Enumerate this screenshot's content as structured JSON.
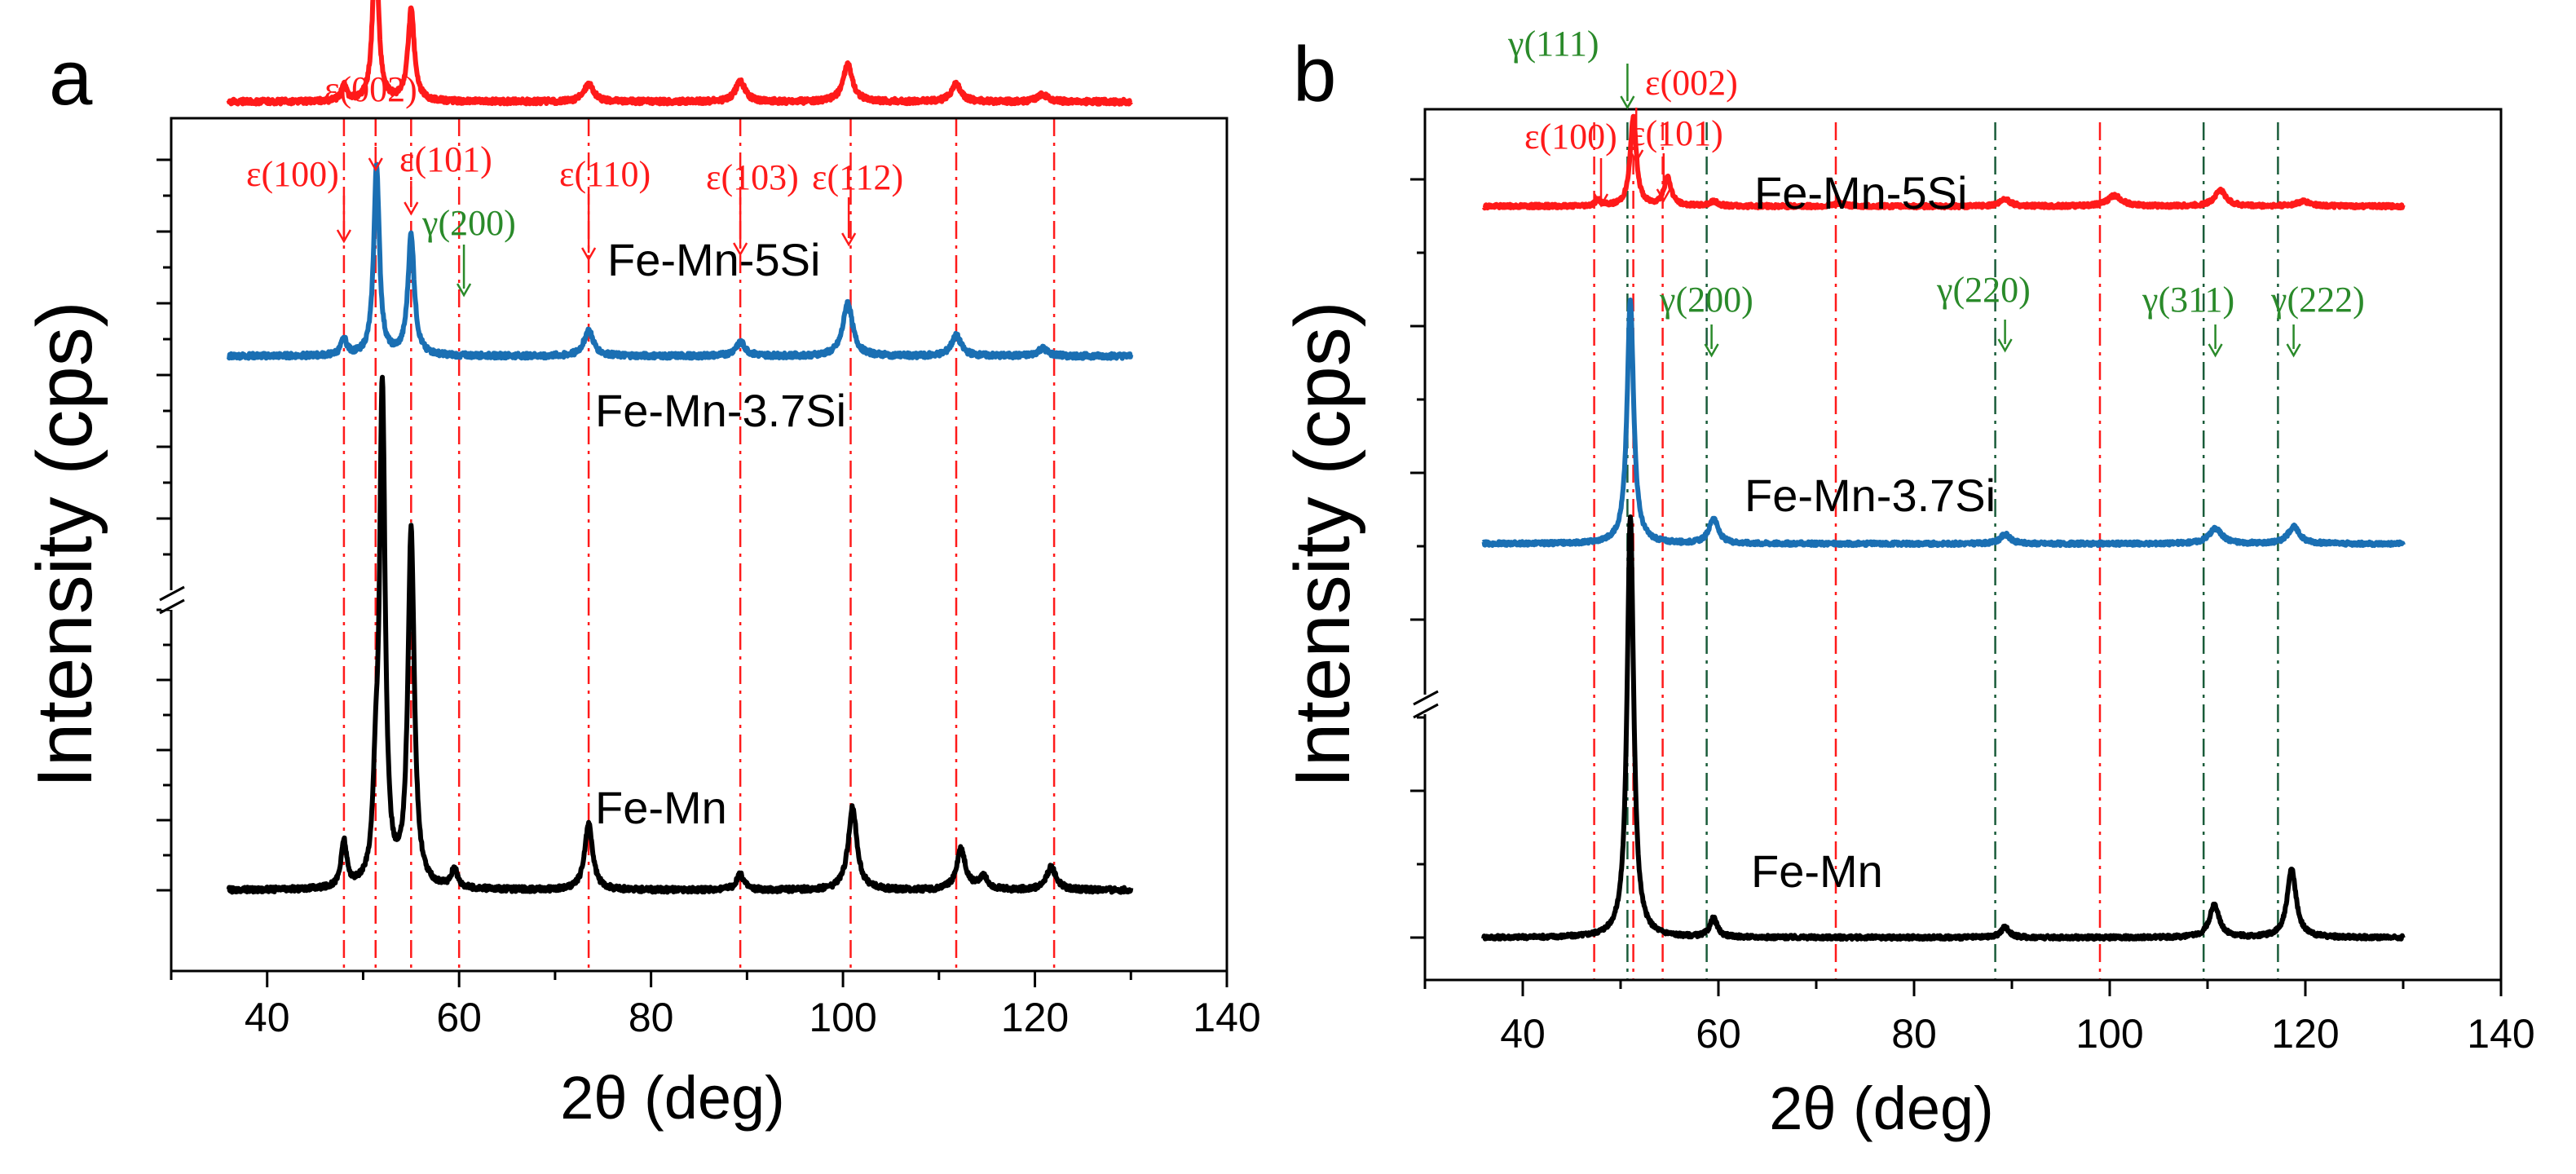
{
  "colors": {
    "red": "#ff1a1a",
    "blue": "#1a6fb3",
    "black": "#000000",
    "green": "#2a8a2a"
  },
  "chart_data": [
    {
      "panel": "a",
      "type": "line",
      "xlabel": "2θ (deg)",
      "ylabel": "Intensity (cps)",
      "xlim": [
        30,
        140
      ],
      "xticks": [
        40,
        60,
        80,
        100,
        120,
        140
      ],
      "axis_break": true,
      "reference_lines": {
        "epsilon": [
          48,
          51.3,
          55,
          60,
          73.5,
          89.3,
          100.8,
          111.8,
          122
        ],
        "gamma": []
      },
      "series": [
        {
          "name": "Fe-Mn-5Si",
          "color": "red",
          "baseline": 0.62,
          "peaks": [
            [
              48,
              0.012,
              0.35
            ],
            [
              51.3,
              0.13,
              0.35
            ],
            [
              55,
              0.072,
              0.4
            ],
            [
              73.5,
              0.014,
              0.6
            ],
            [
              89.3,
              0.016,
              0.6
            ],
            [
              100.5,
              0.029,
              0.6
            ],
            [
              111.8,
              0.014,
              0.6
            ],
            [
              120.8,
              0.006,
              0.6
            ]
          ]
        },
        {
          "name": "Fe-Mn-3.7Si",
          "color": "blue",
          "baseline": 0.42,
          "peaks": [
            [
              48,
              0.013,
              0.35
            ],
            [
              51.4,
              0.15,
              0.35
            ],
            [
              55,
              0.095,
              0.4
            ],
            [
              73.5,
              0.02,
              0.6
            ],
            [
              89.3,
              0.011,
              0.6
            ],
            [
              100.5,
              0.042,
              0.6
            ],
            [
              111.8,
              0.016,
              0.6
            ],
            [
              120.8,
              0.006,
              0.6
            ]
          ]
        },
        {
          "name": "Fe-Mn",
          "color": "black",
          "baseline": 0.0,
          "peaks": [
            [
              48,
              0.036,
              0.35
            ],
            [
              51.3,
              0.06,
              0.3
            ],
            [
              52,
              0.39,
              0.35
            ],
            [
              55,
              0.28,
              0.4
            ],
            [
              59.5,
              0.015,
              0.4
            ],
            [
              73.5,
              0.052,
              0.5
            ],
            [
              89.3,
              0.012,
              0.5
            ],
            [
              101,
              0.065,
              0.55
            ],
            [
              112.3,
              0.032,
              0.55
            ],
            [
              114.6,
              0.01,
              0.6
            ],
            [
              121.7,
              0.018,
              0.6
            ]
          ]
        }
      ],
      "series_labels": [
        "Fe-Mn-5Si",
        "Fe-Mn-3.7Si",
        "Fe-Mn"
      ],
      "peak_labels": [
        {
          "text": "ε(002)",
          "x": 51.3,
          "phase": "epsilon"
        },
        {
          "text": "ε(100)",
          "x": 48,
          "phase": "epsilon"
        },
        {
          "text": "ε(101)",
          "x": 55,
          "phase": "epsilon"
        },
        {
          "text": "γ(200)",
          "x": 60.5,
          "phase": "gamma"
        },
        {
          "text": "ε(110)",
          "x": 73.5,
          "phase": "epsilon"
        },
        {
          "text": "ε(103)",
          "x": 89.3,
          "phase": "epsilon"
        },
        {
          "text": "ε(112)",
          "x": 100.6,
          "phase": "epsilon"
        }
      ]
    },
    {
      "panel": "b",
      "type": "line",
      "xlabel": "2θ (deg)",
      "ylabel": "Intensity (cps)",
      "xlim": [
        30,
        140
      ],
      "xticks": [
        40,
        60,
        80,
        100,
        120,
        140
      ],
      "axis_break": true,
      "reference_lines": {
        "epsilon": [
          47.3,
          51.3,
          54.3,
          72,
          99
        ],
        "gamma": [
          50.7,
          58.8,
          88.3,
          109.6,
          117.2
        ]
      },
      "series": [
        {
          "name": "Fe-Mn-5Si",
          "color": "red",
          "baseline": 0.78,
          "peaks": [
            [
              47.7,
              0.006,
              0.35
            ],
            [
              51.3,
              0.095,
              0.38
            ],
            [
              54.8,
              0.03,
              0.45
            ],
            [
              59.5,
              0.005,
              0.5
            ],
            [
              72.5,
              0.003,
              0.6
            ],
            [
              89.3,
              0.008,
              0.6
            ],
            [
              100.5,
              0.011,
              0.9
            ],
            [
              111.3,
              0.017,
              0.7
            ],
            [
              119.8,
              0.005,
              0.9
            ]
          ]
        },
        {
          "name": "Fe-Mn-3.7Si",
          "color": "blue",
          "baseline": 0.42,
          "peaks": [
            [
              51,
              0.26,
              0.4
            ],
            [
              59.5,
              0.027,
              0.55
            ],
            [
              89.3,
              0.01,
              0.6
            ],
            [
              110.8,
              0.016,
              0.8
            ],
            [
              118.8,
              0.018,
              0.7
            ]
          ]
        },
        {
          "name": "Fe-Mn",
          "color": "black",
          "baseline": 0.0,
          "peaks": [
            [
              51,
              0.45,
              0.4
            ],
            [
              59.5,
              0.02,
              0.45
            ],
            [
              89.3,
              0.011,
              0.5
            ],
            [
              110.7,
              0.035,
              0.6
            ],
            [
              118.6,
              0.073,
              0.55
            ]
          ]
        }
      ],
      "series_labels": [
        "Fe-Mn-5Si",
        "Fe-Mn-3.7Si",
        "Fe-Mn"
      ],
      "peak_labels": [
        {
          "text": "γ(111)",
          "x": 50.7,
          "phase": "gamma"
        },
        {
          "text": "ε(002)",
          "x": 51.3,
          "phase": "epsilon"
        },
        {
          "text": "ε(100)",
          "x": 47.3,
          "phase": "epsilon"
        },
        {
          "text": "ε(101)",
          "x": 54.3,
          "phase": "epsilon"
        },
        {
          "text": "γ(200)",
          "x": 59.3,
          "phase": "gamma"
        },
        {
          "text": "γ(220)",
          "x": 89.3,
          "phase": "gamma"
        },
        {
          "text": "γ(311)",
          "x": 110.8,
          "phase": "gamma"
        },
        {
          "text": "γ(222)",
          "x": 118.8,
          "phase": "gamma"
        }
      ]
    }
  ]
}
